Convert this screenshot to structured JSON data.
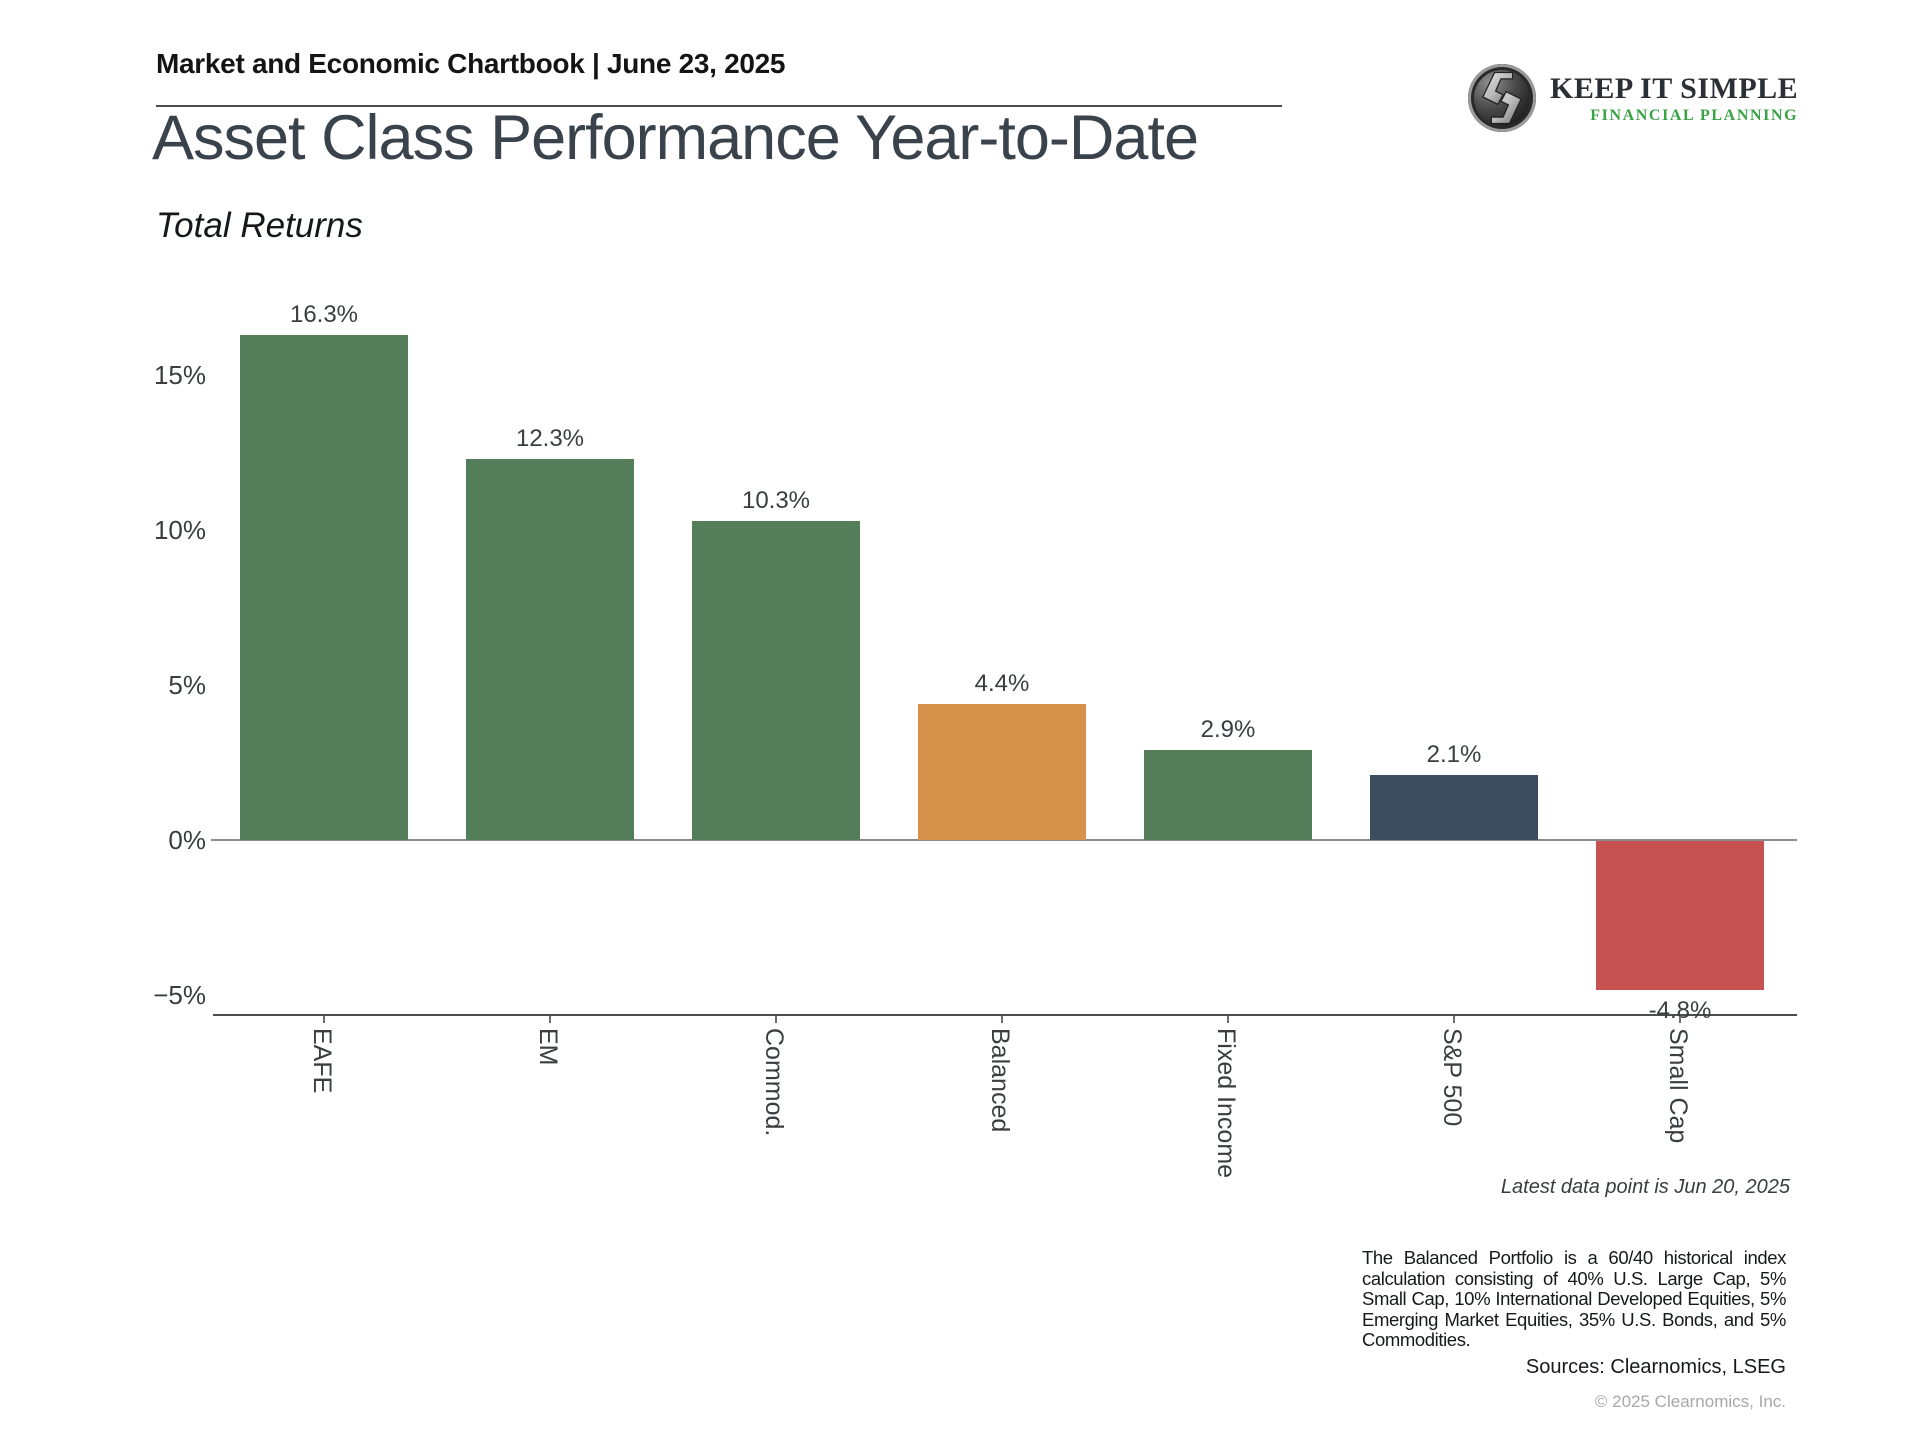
{
  "header": {
    "chartbook_label": "Market and Economic Chartbook | June 23, 2025"
  },
  "logo": {
    "name": "KEEP IT SIMPLE",
    "tagline": "FINANCIAL PLANNING",
    "tagline_color": "#38a244"
  },
  "title": "Asset Class Performance Year-to-Date",
  "subtitle": "Total Returns",
  "chart_data": {
    "type": "bar",
    "title": "Asset Class Performance Year-to-Date",
    "subtitle": "Total Returns",
    "categories": [
      "EAFE",
      "EM",
      "Commod.",
      "Balanced",
      "Fixed Income",
      "S&P 500",
      "Small Cap"
    ],
    "values": [
      16.3,
      12.3,
      10.3,
      4.4,
      2.9,
      2.1,
      -4.8
    ],
    "value_labels": [
      "16.3%",
      "12.3%",
      "10.3%",
      "4.4%",
      "2.9%",
      "2.1%",
      "-4.8%"
    ],
    "bar_colors": [
      "#547d59",
      "#547d59",
      "#547d59",
      "#d6914b",
      "#547d59",
      "#3c4d5f",
      "#c55151"
    ],
    "y_ticks": [
      {
        "label": "15%",
        "value": 15
      },
      {
        "label": "10%",
        "value": 10
      },
      {
        "label": "5%",
        "value": 5
      },
      {
        "label": "0%",
        "value": 0
      },
      {
        "label": "−5%",
        "value": -5
      }
    ],
    "ylim": [
      -6.5,
      17.5
    ],
    "xlabel": "",
    "ylabel": "",
    "grid": "zero-line-only",
    "legend": "none"
  },
  "footer": {
    "latest_note": "Latest data point is Jun 20, 2025",
    "note": "The Balanced Portfolio is a 60/40 historical index calculation consisting of 40% U.S. Large Cap, 5% Small Cap, 10% International Developed Equities, 5% Emerging Market Equities, 35% U.S. Bonds, and 5% Commodities.",
    "sources": "Sources: Clearnomics, LSEG",
    "copyright": "© 2025 Clearnomics, Inc."
  }
}
